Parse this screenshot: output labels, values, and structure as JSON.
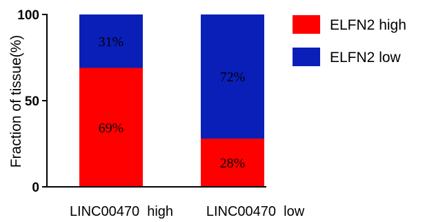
{
  "chart_data": {
    "type": "bar",
    "stacked": true,
    "categories": [
      "LINC00470  high",
      "LINC00470  low"
    ],
    "series": [
      {
        "name": "ELFN2 high",
        "values": [
          69,
          28
        ],
        "labels": [
          "69%",
          "28%"
        ],
        "color": "#ff0000"
      },
      {
        "name": "ELFN2 low",
        "values": [
          31,
          72
        ],
        "labels": [
          "31%",
          "72%"
        ],
        "color": "#0a1fb8"
      }
    ],
    "ylabel": "Fraction of tissue(%)",
    "yticks": [
      "0",
      "50",
      "100"
    ],
    "ylim": [
      0,
      100
    ],
    "legend_position": "right",
    "grid": false
  }
}
